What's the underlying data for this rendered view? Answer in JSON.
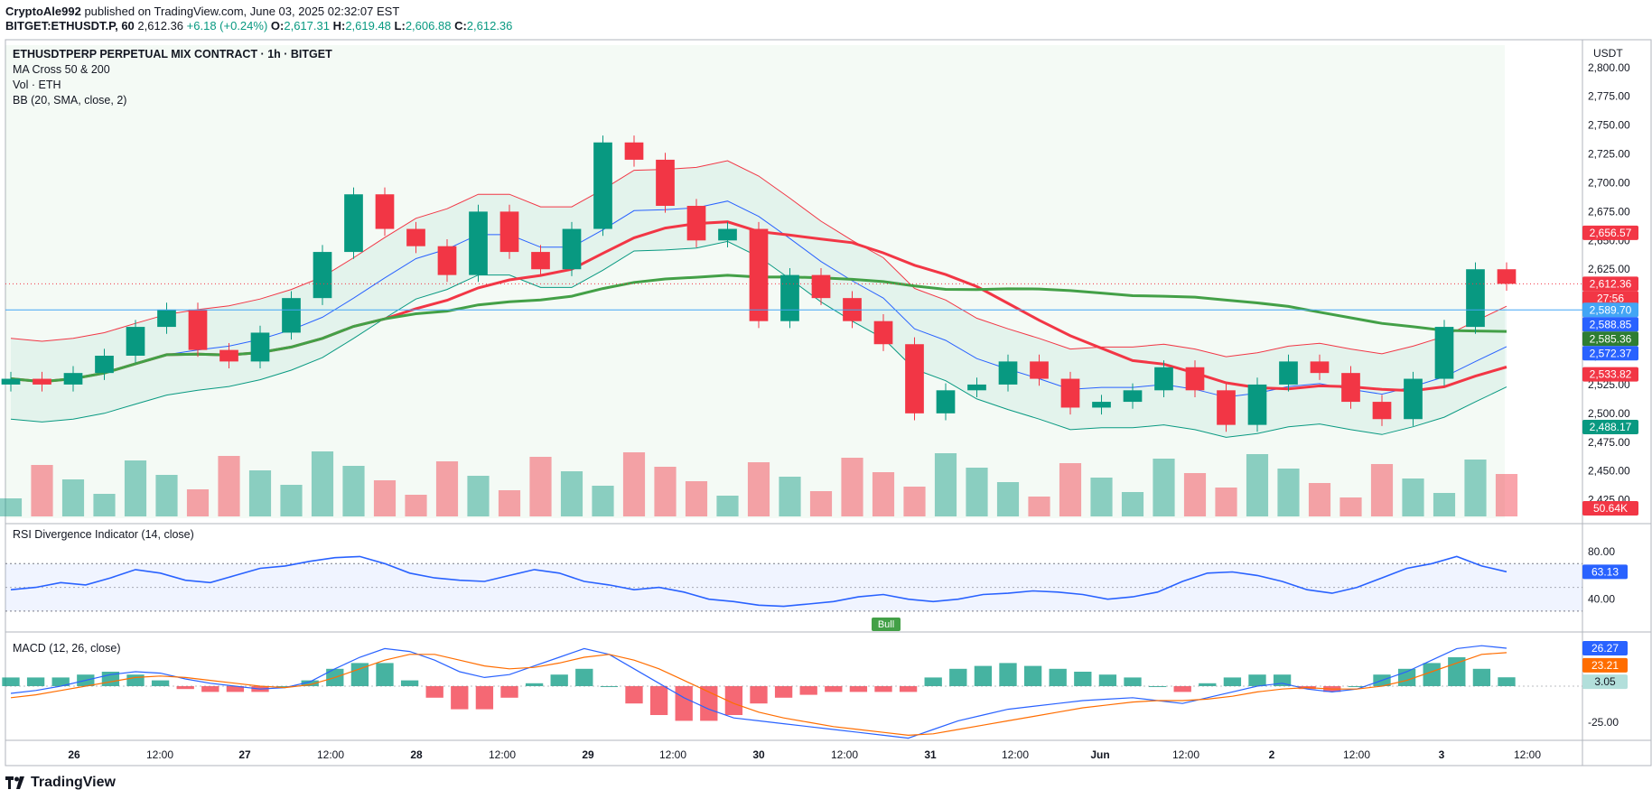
{
  "header": {
    "author": "CryptoAle992",
    "published_text": "published on TradingView.com, June 03, 2025 02:32:07 EST",
    "symbol": "BITGET:ETHUSDT.P, 60",
    "last": "2,612.36",
    "change": "+6.18 (+0.24%)",
    "open_label": "O:",
    "open": "2,617.31",
    "high_label": "H:",
    "high": "2,619.48",
    "low_label": "L:",
    "low": "2,606.88",
    "close_label": "C:",
    "close": "2,612.36"
  },
  "legend": {
    "title": "ETHUSDTPERP PERPETUAL MIX CONTRACT · 1h · BITGET",
    "ma": "MA Cross 50 & 200",
    "vol": "Vol · ETH",
    "bb": "BB (20, SMA, close, 2)",
    "rsi": "RSI Divergence Indicator (14, close)",
    "macd": "MACD (12, 26, close)"
  },
  "currency": "USDT",
  "brand": {
    "name": "TradingView",
    "logo_icon": "tradingview-logo-icon"
  },
  "colors": {
    "up": "#089981",
    "down": "#f23645",
    "ma50": "#f23645",
    "ma200": "#43a047",
    "bb_basis": "#2962ff",
    "bb_upper": "#f23645",
    "bb_lower": "#089981",
    "rsi_line": "#2962ff",
    "macd_line": "#2962ff",
    "signal_line": "#ff6d00"
  },
  "chart_data": {
    "type": "candlestick",
    "price_axis": {
      "ticks": [
        "2,800.00",
        "2,775.00",
        "2,750.00",
        "2,725.00",
        "2,700.00",
        "2,675.00",
        "2,650.00",
        "2,625.00",
        "2,600.00",
        "2,575.00",
        "2,550.00",
        "2,525.00",
        "2,500.00",
        "2,475.00",
        "2,450.00",
        "2,425.00"
      ],
      "range": [
        2420,
        2810
      ]
    },
    "time_axis": {
      "labels": [
        "26",
        "12:00",
        "27",
        "12:00",
        "28",
        "12:00",
        "29",
        "12:00",
        "30",
        "12:00",
        "31",
        "12:00",
        "Jun",
        "12:00",
        "2",
        "12:00",
        "3",
        "12:00"
      ]
    },
    "price_labels": [
      {
        "value": "2,656.57",
        "color": "#f23645"
      },
      {
        "value": "2,612.36",
        "color": "#f23645"
      },
      {
        "value": "27:56",
        "color": "#f23645"
      },
      {
        "value": "2,589.70",
        "color": "#42a5f5"
      },
      {
        "value": "2,588.85",
        "color": "#2962ff"
      },
      {
        "value": "2,585.36",
        "color": "#2e7d32"
      },
      {
        "value": "2,572.37",
        "color": "#2962ff"
      },
      {
        "value": "2,533.82",
        "color": "#f23645"
      },
      {
        "value": "2,488.17",
        "color": "#089981"
      },
      {
        "value": "50.64K",
        "color": "#f23645"
      }
    ],
    "candles_sample_closes": [
      2530,
      2525,
      2535,
      2550,
      2575,
      2590,
      2555,
      2545,
      2570,
      2600,
      2640,
      2690,
      2660,
      2645,
      2620,
      2675,
      2640,
      2625,
      2660,
      2735,
      2720,
      2680,
      2650,
      2660,
      2580,
      2620,
      2600,
      2580,
      2560,
      2500,
      2520,
      2525,
      2545,
      2530,
      2505,
      2510,
      2520,
      2540,
      2520,
      2490,
      2525,
      2545,
      2535,
      2510,
      2495,
      2530,
      2575,
      2625,
      2612.36
    ],
    "volume_last": "50.64K",
    "rsi": {
      "axis_ticks": [
        "80.00",
        "40.00"
      ],
      "last": "63.13",
      "bands": [
        70,
        30
      ],
      "divergence_label": "Bull",
      "values": [
        48,
        50,
        54,
        52,
        58,
        65,
        62,
        56,
        54,
        60,
        66,
        68,
        72,
        75,
        76,
        70,
        62,
        58,
        56,
        55,
        60,
        65,
        62,
        55,
        52,
        48,
        50,
        46,
        40,
        38,
        35,
        34,
        36,
        38,
        42,
        44,
        40,
        38,
        40,
        44,
        45,
        47,
        46,
        44,
        40,
        42,
        46,
        55,
        62,
        63,
        60,
        55,
        48,
        45,
        50,
        58,
        66,
        70,
        76,
        68,
        63.13
      ]
    },
    "macd": {
      "axis_ticks": [
        "0",
        "-25.00"
      ],
      "macd_last": "26.27",
      "signal_last": "23.21",
      "hist_last": "3.05",
      "macd_values": [
        -5,
        -3,
        0,
        4,
        8,
        10,
        9,
        5,
        2,
        0,
        -2,
        -1,
        3,
        12,
        20,
        26,
        24,
        18,
        10,
        6,
        8,
        14,
        20,
        26,
        22,
        12,
        2,
        -8,
        -16,
        -22,
        -24,
        -26,
        -28,
        -30,
        -32,
        -34,
        -36,
        -30,
        -24,
        -20,
        -16,
        -14,
        -12,
        -10,
        -9,
        -8,
        -10,
        -12,
        -8,
        -4,
        0,
        2,
        -2,
        -4,
        -2,
        4,
        10,
        18,
        26,
        28,
        26.27
      ],
      "signal_values": [
        -8,
        -6,
        -3,
        0,
        3,
        6,
        7,
        6,
        4,
        2,
        0,
        -1,
        1,
        6,
        12,
        18,
        22,
        22,
        18,
        14,
        12,
        13,
        16,
        20,
        22,
        18,
        12,
        4,
        -4,
        -12,
        -18,
        -22,
        -25,
        -28,
        -30,
        -32,
        -34,
        -33,
        -30,
        -27,
        -24,
        -21,
        -18,
        -15,
        -13,
        -11,
        -10,
        -10,
        -9,
        -7,
        -4,
        -2,
        -1,
        -2,
        -2,
        0,
        4,
        10,
        16,
        22,
        23.21
      ]
    }
  }
}
